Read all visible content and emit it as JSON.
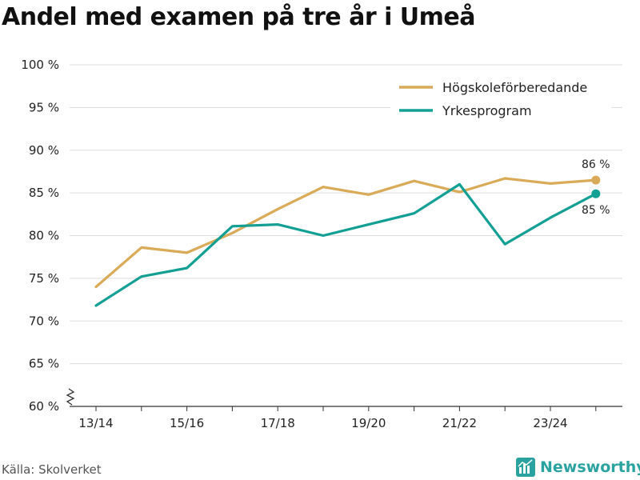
{
  "chart_data": {
    "type": "line",
    "title": "Andel med examen på tre år i Umeå",
    "xlabel": "",
    "ylabel": "",
    "x": [
      "13/14",
      "14/15",
      "15/16",
      "16/17",
      "17/18",
      "18/19",
      "19/20",
      "20/21",
      "21/22",
      "22/23",
      "23/24",
      "24/25"
    ],
    "x_tick_labels": [
      "13/14",
      "15/16",
      "17/18",
      "19/20",
      "21/22",
      "23/24"
    ],
    "ylim": [
      60,
      100
    ],
    "y_tick_labels": [
      "60 %",
      "65 %",
      "70 %",
      "75 %",
      "80 %",
      "85 %",
      "90 %",
      "95 %",
      "100 %"
    ],
    "y_axis_break": true,
    "grid": true,
    "legend_position": "top-right",
    "series": [
      {
        "name": "Högskoleförberedande",
        "color": "#d9aa57",
        "values": [
          74.0,
          78.6,
          78.0,
          80.3,
          83.1,
          85.7,
          84.8,
          86.4,
          85.1,
          86.7,
          86.1,
          86.5
        ],
        "end_label": "86 %"
      },
      {
        "name": "Yrkesprogram",
        "color": "#139f94",
        "values": [
          71.8,
          75.2,
          76.2,
          81.1,
          81.3,
          80.0,
          81.3,
          82.6,
          86.0,
          79.0,
          82.1,
          84.9
        ],
        "end_label": "85 %"
      }
    ]
  },
  "footer": {
    "source": "Källa: Skolverket",
    "brand": "Newsworthy"
  },
  "colors": {
    "grid": "#dddddd",
    "axis": "#333333",
    "brand": "#2aa3a0"
  }
}
